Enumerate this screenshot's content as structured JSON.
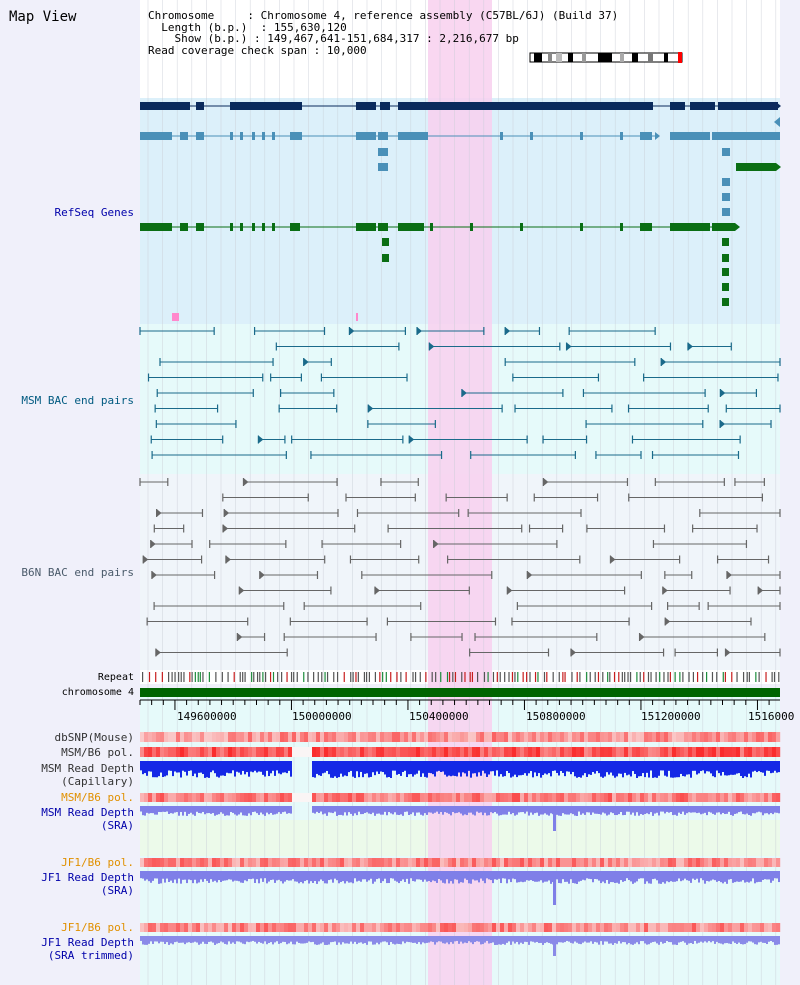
{
  "title": "Map View",
  "info": {
    "chromosome_key": "Chromosome",
    "chromosome_value": "Chromosome 4, reference assembly (C57BL/6J) (Build 37)",
    "length_key": "Length (b.p.)",
    "length_value": "155,630,120",
    "show_key": "Show (b.p.)",
    "show_value": "149,467,641-151,684,317 : 2,216,677 bp",
    "span_key": "Read coverage check span",
    "span_value": "10,000"
  },
  "tracks": {
    "refseq": "RefSeq Genes",
    "msm_bac": "MSM BAC end pairs",
    "b6n_bac": "B6N BAC end pairs",
    "repeat": "Repeat",
    "chromosome": "chromosome 4",
    "dbsnp": "dbSNP(Mouse)",
    "msm_b6_pol_1": "MSM/B6 pol.",
    "msm_depth_cap_1": "MSM Read Depth",
    "msm_depth_cap_2": "(Capillary)",
    "msm_b6_pol_2": "MSM/B6 pol.",
    "msm_depth_sra_1": "MSM Read Depth",
    "msm_depth_sra_2": "(SRA)",
    "jf1_b6_pol_1": "JF1/B6 pol.",
    "jf1_depth_sra_1": "JF1 Read Depth",
    "jf1_depth_sra_2": "(SRA)",
    "jf1_b6_pol_2": "JF1/B6 pol.",
    "jf1_depth_trim_1": "JF1 Read Depth",
    "jf1_depth_trim_2": "(SRA trimmed)"
  },
  "axis": {
    "ticks": [
      "149600000",
      "150000000",
      "150400000",
      "150800000",
      "151200000",
      "1516000"
    ]
  },
  "colors": {
    "label_blue": "#0000aa",
    "label_teal": "#005a80",
    "label_orange": "#e09000",
    "label_dark": "#333333",
    "highlight": "#f8d0ef"
  }
}
